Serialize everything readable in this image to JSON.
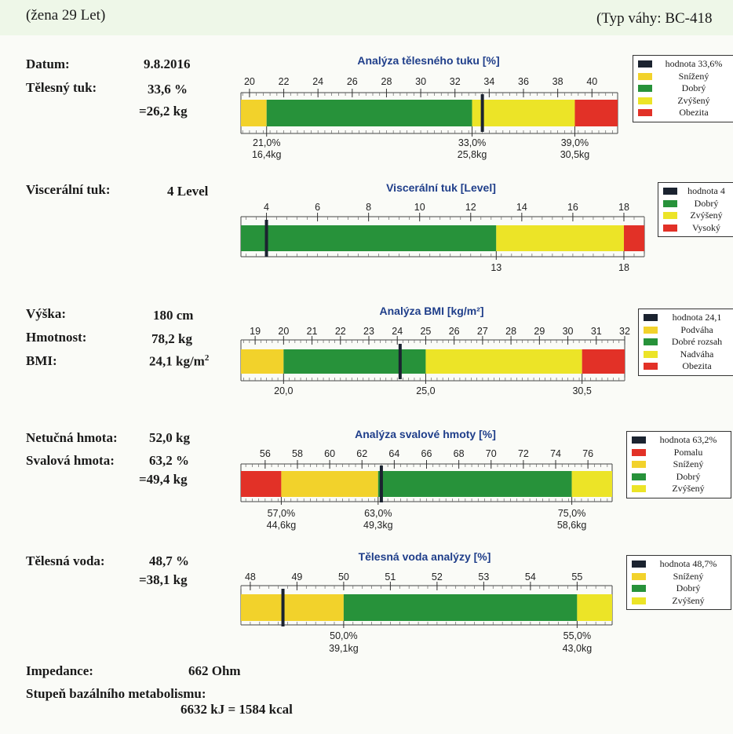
{
  "header": {
    "subject": "(žena 29 Let)",
    "scale_type": "(Typ váhy: BC-418"
  },
  "colors": {
    "yellow": "#f2d22b",
    "green": "#27923a",
    "lightyellow": "#ece427",
    "red": "#e23127",
    "marker": "#1b2330",
    "title": "#1f3e8a"
  },
  "left_info": {
    "datum_label": "Datum:",
    "datum_value": "9.8.2016",
    "fat_label": "Tělesný tuk:",
    "fat_value": "33,6 %",
    "fat_kg": "=26,2 kg",
    "visceral_label": "Viscerální tuk:",
    "visceral_value": "4 Level",
    "height_label": "Výška:",
    "height_value": "180 cm",
    "weight_label": "Hmotnost:",
    "weight_value": "78,2 kg",
    "bmi_label": "BMI:",
    "bmi_value": "24,1 kg/m",
    "bmi_sup": "2",
    "lean_label": "Netučná hmota:",
    "lean_value": "52,0 kg",
    "muscle_label": "Svalová hmota:",
    "muscle_value": "63,2 %",
    "muscle_kg": "=49,4 kg",
    "water_label": "Tělesná voda:",
    "water_value": "48,7 %",
    "water_kg": "=38,1 kg",
    "impedance_label": "Impedance:",
    "impedance_value": "662 Ohm",
    "bmr_label": "Stupeň bazálního metabolismu:",
    "bmr_value": "6632 kJ = 1584 kcal"
  },
  "chart_data": [
    {
      "type": "bar",
      "title": "Analýza tělesného tuku [%]",
      "range": [
        19.5,
        41.5
      ],
      "ticks": [
        "20",
        "22",
        "24",
        "26",
        "28",
        "30",
        "32",
        "34",
        "36",
        "38",
        "40"
      ],
      "segments": [
        {
          "from": 19.5,
          "to": 21.0,
          "color": "yellow"
        },
        {
          "from": 21.0,
          "to": 33.0,
          "color": "green"
        },
        {
          "from": 33.0,
          "to": 39.0,
          "color": "lightyellow"
        },
        {
          "from": 39.0,
          "to": 41.5,
          "color": "red"
        }
      ],
      "marker": 33.6,
      "thresholds": [
        {
          "x": 21.0,
          "label": "21,0%",
          "label2": "16,4kg"
        },
        {
          "x": 33.0,
          "label": "33,0%",
          "label2": "25,8kg"
        },
        {
          "x": 39.0,
          "label": "39,0%",
          "label2": "30,5kg"
        }
      ],
      "legend": [
        {
          "label": "hodnota 33,6%",
          "color": "marker"
        },
        {
          "label": "Snížený",
          "color": "yellow"
        },
        {
          "label": "Dobrý",
          "color": "green"
        },
        {
          "label": "Zvýšený",
          "color": "lightyellow"
        },
        {
          "label": "Obezita",
          "color": "red"
        }
      ]
    },
    {
      "type": "bar",
      "title": "Viscerální tuk [Level]",
      "range": [
        3,
        18.8
      ],
      "ticks": [
        "4",
        "6",
        "8",
        "10",
        "12",
        "14",
        "16",
        "18"
      ],
      "segments": [
        {
          "from": 3,
          "to": 13,
          "color": "green"
        },
        {
          "from": 13,
          "to": 18,
          "color": "lightyellow"
        },
        {
          "from": 18,
          "to": 18.8,
          "color": "red"
        }
      ],
      "marker": 4,
      "thresholds": [
        {
          "x": 13,
          "label": "13",
          "label2": ""
        },
        {
          "x": 18,
          "label": "18",
          "label2": ""
        }
      ],
      "legend": [
        {
          "label": "hodnota 4",
          "color": "marker"
        },
        {
          "label": "Dobrý",
          "color": "green"
        },
        {
          "label": "Zvýšený",
          "color": "lightyellow"
        },
        {
          "label": "Vysoký",
          "color": "red"
        }
      ]
    },
    {
      "type": "bar",
      "title": "Analýza BMI [kg/m²]",
      "range": [
        18.5,
        32
      ],
      "ticks": [
        "19",
        "20",
        "21",
        "22",
        "23",
        "24",
        "25",
        "26",
        "27",
        "28",
        "29",
        "30",
        "31",
        "32"
      ],
      "segments": [
        {
          "from": 18.5,
          "to": 20.0,
          "color": "yellow"
        },
        {
          "from": 20.0,
          "to": 25.0,
          "color": "green"
        },
        {
          "from": 25.0,
          "to": 30.5,
          "color": "lightyellow"
        },
        {
          "from": 30.5,
          "to": 32,
          "color": "red"
        }
      ],
      "marker": 24.1,
      "thresholds": [
        {
          "x": 20.0,
          "label": "20,0",
          "label2": ""
        },
        {
          "x": 25.0,
          "label": "25,0",
          "label2": ""
        },
        {
          "x": 30.5,
          "label": "30,5",
          "label2": ""
        }
      ],
      "legend": [
        {
          "label": "hodnota 24,1",
          "color": "marker"
        },
        {
          "label": "Podváha",
          "color": "yellow"
        },
        {
          "label": "Dobré rozsah",
          "color": "green"
        },
        {
          "label": "Nadváha",
          "color": "lightyellow"
        },
        {
          "label": "Obezita",
          "color": "red"
        }
      ]
    },
    {
      "type": "bar",
      "title": "Analýza svalové hmoty [%]",
      "range": [
        54.5,
        77.5
      ],
      "ticks": [
        "56",
        "58",
        "60",
        "62",
        "64",
        "66",
        "68",
        "70",
        "72",
        "74",
        "76"
      ],
      "segments": [
        {
          "from": 54.5,
          "to": 57.0,
          "color": "red"
        },
        {
          "from": 57.0,
          "to": 63.0,
          "color": "yellow"
        },
        {
          "from": 63.0,
          "to": 75.0,
          "color": "green"
        },
        {
          "from": 75.0,
          "to": 77.5,
          "color": "lightyellow"
        }
      ],
      "marker": 63.2,
      "thresholds": [
        {
          "x": 57.0,
          "label": "57,0%",
          "label2": "44,6kg"
        },
        {
          "x": 63.0,
          "label": "63,0%",
          "label2": "49,3kg"
        },
        {
          "x": 75.0,
          "label": "75,0%",
          "label2": "58,6kg"
        }
      ],
      "legend": [
        {
          "label": "hodnota 63,2%",
          "color": "marker"
        },
        {
          "label": "Pomalu",
          "color": "red"
        },
        {
          "label": "Snížený",
          "color": "yellow"
        },
        {
          "label": "Dobrý",
          "color": "green"
        },
        {
          "label": "Zvýšený",
          "color": "lightyellow"
        }
      ]
    },
    {
      "type": "bar",
      "title": "Tělesná voda analýzy [%]",
      "range": [
        47.8,
        55.75
      ],
      "ticks": [
        "48",
        "49",
        "50",
        "51",
        "52",
        "53",
        "54",
        "55"
      ],
      "segments": [
        {
          "from": 47.8,
          "to": 50.0,
          "color": "yellow"
        },
        {
          "from": 50.0,
          "to": 55.0,
          "color": "green"
        },
        {
          "from": 55.0,
          "to": 55.75,
          "color": "lightyellow"
        }
      ],
      "marker": 48.7,
      "thresholds": [
        {
          "x": 50.0,
          "label": "50,0%",
          "label2": "39,1kg"
        },
        {
          "x": 55.0,
          "label": "55,0%",
          "label2": "43,0kg"
        }
      ],
      "legend": [
        {
          "label": "hodnota 48,7%",
          "color": "marker"
        },
        {
          "label": "Snížený",
          "color": "yellow"
        },
        {
          "label": "Dobrý",
          "color": "green"
        },
        {
          "label": "Zvýšený",
          "color": "lightyellow"
        }
      ]
    }
  ]
}
